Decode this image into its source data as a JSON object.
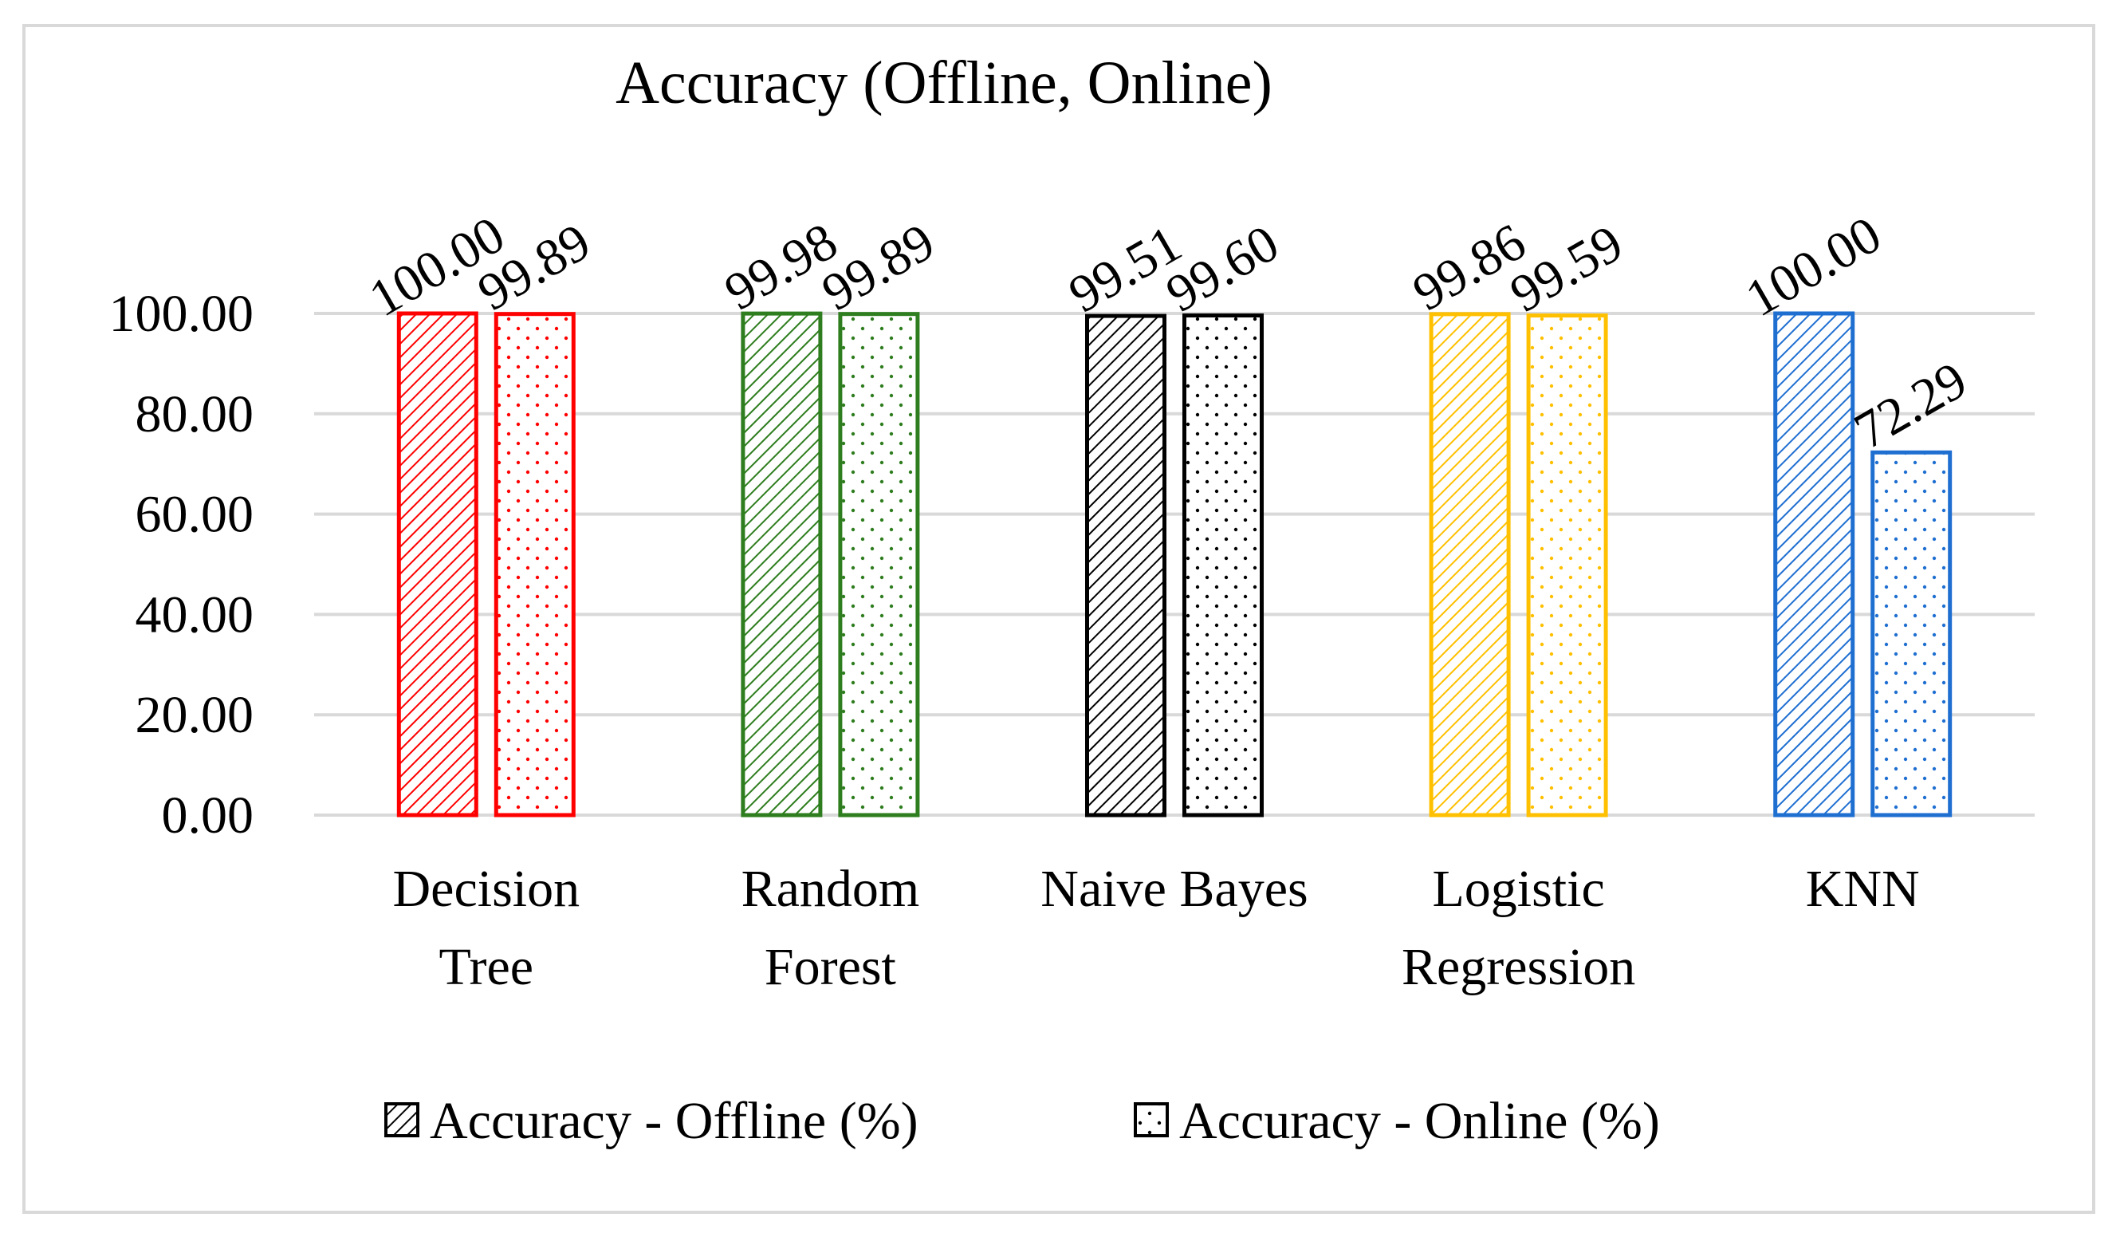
{
  "chart_data": {
    "type": "bar",
    "title": "Accuracy (Offline, Online)",
    "categories": [
      [
        "Decision",
        "Tree"
      ],
      [
        "Random",
        "Forest"
      ],
      [
        "Naive Bayes"
      ],
      [
        "Logistic",
        "Regression"
      ],
      [
        "KNN"
      ]
    ],
    "category_colors": [
      "#ff0000",
      "#2e7d1e",
      "#000000",
      "#ffc000",
      "#1f6fd1"
    ],
    "series": [
      {
        "name": "Accuracy - Offline (%)",
        "pattern": "diagonal-hatch",
        "values": [
          100.0,
          99.98,
          99.51,
          99.86,
          100.0
        ]
      },
      {
        "name": "Accuracy - Online (%)",
        "pattern": "dots",
        "values": [
          99.89,
          99.89,
          99.6,
          99.59,
          72.29
        ]
      }
    ],
    "data_labels": [
      [
        "100.00",
        "99.89"
      ],
      [
        "99.98",
        "99.89"
      ],
      [
        "99.51",
        "99.60"
      ],
      [
        "99.86",
        "99.59"
      ],
      [
        "100.00",
        "72.29"
      ]
    ],
    "ylim": [
      0,
      100
    ],
    "yticks": [
      "0.00",
      "20.00",
      "40.00",
      "60.00",
      "80.00",
      "100.00"
    ],
    "xlabel": "",
    "ylabel": "",
    "grid": true,
    "legend_position": "bottom"
  }
}
